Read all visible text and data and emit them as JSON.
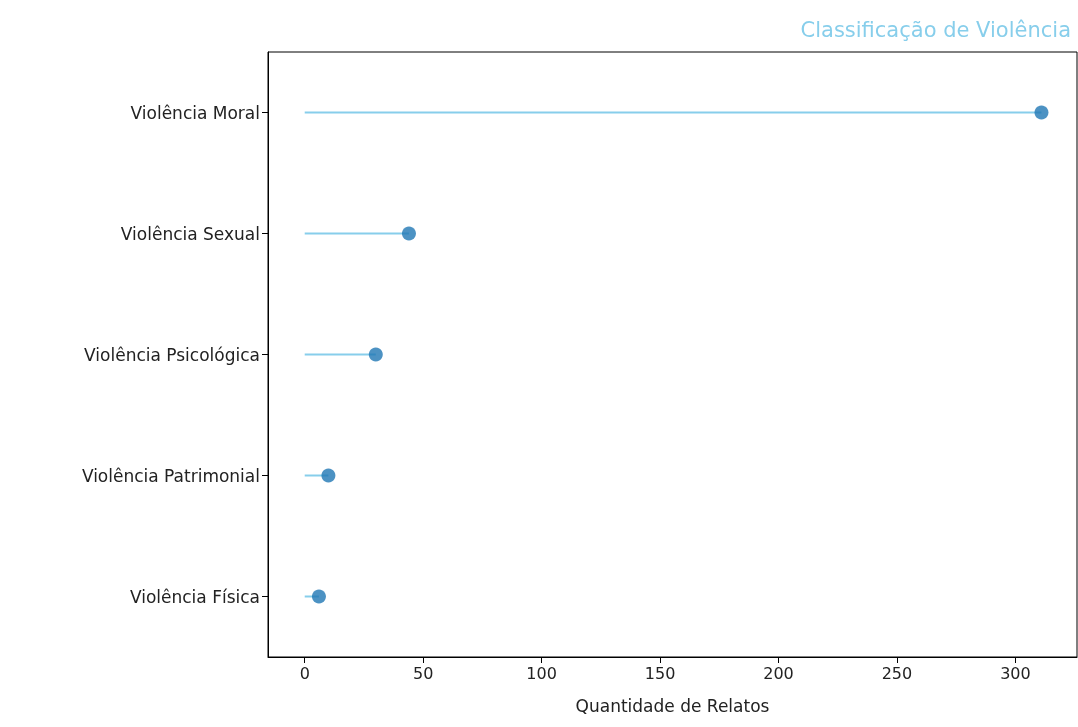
{
  "chart_data": {
    "type": "lollipop",
    "orientation": "horizontal",
    "title": "Classificação de Violência",
    "xlabel": "Quantidade de Relatos",
    "categories": [
      "Violência Moral",
      "Violência Sexual",
      "Violência Psicológica",
      "Violência Patrimonial",
      "Violência Física"
    ],
    "series": [
      {
        "color": "#1f77b4",
        "values": [
          311,
          44,
          30,
          10,
          6
        ]
      }
    ],
    "xlim": [
      -15.5,
      326
    ],
    "xticks": [
      0,
      50,
      100,
      150,
      200,
      250,
      300
    ],
    "marker": "circle",
    "grid": false
  }
}
